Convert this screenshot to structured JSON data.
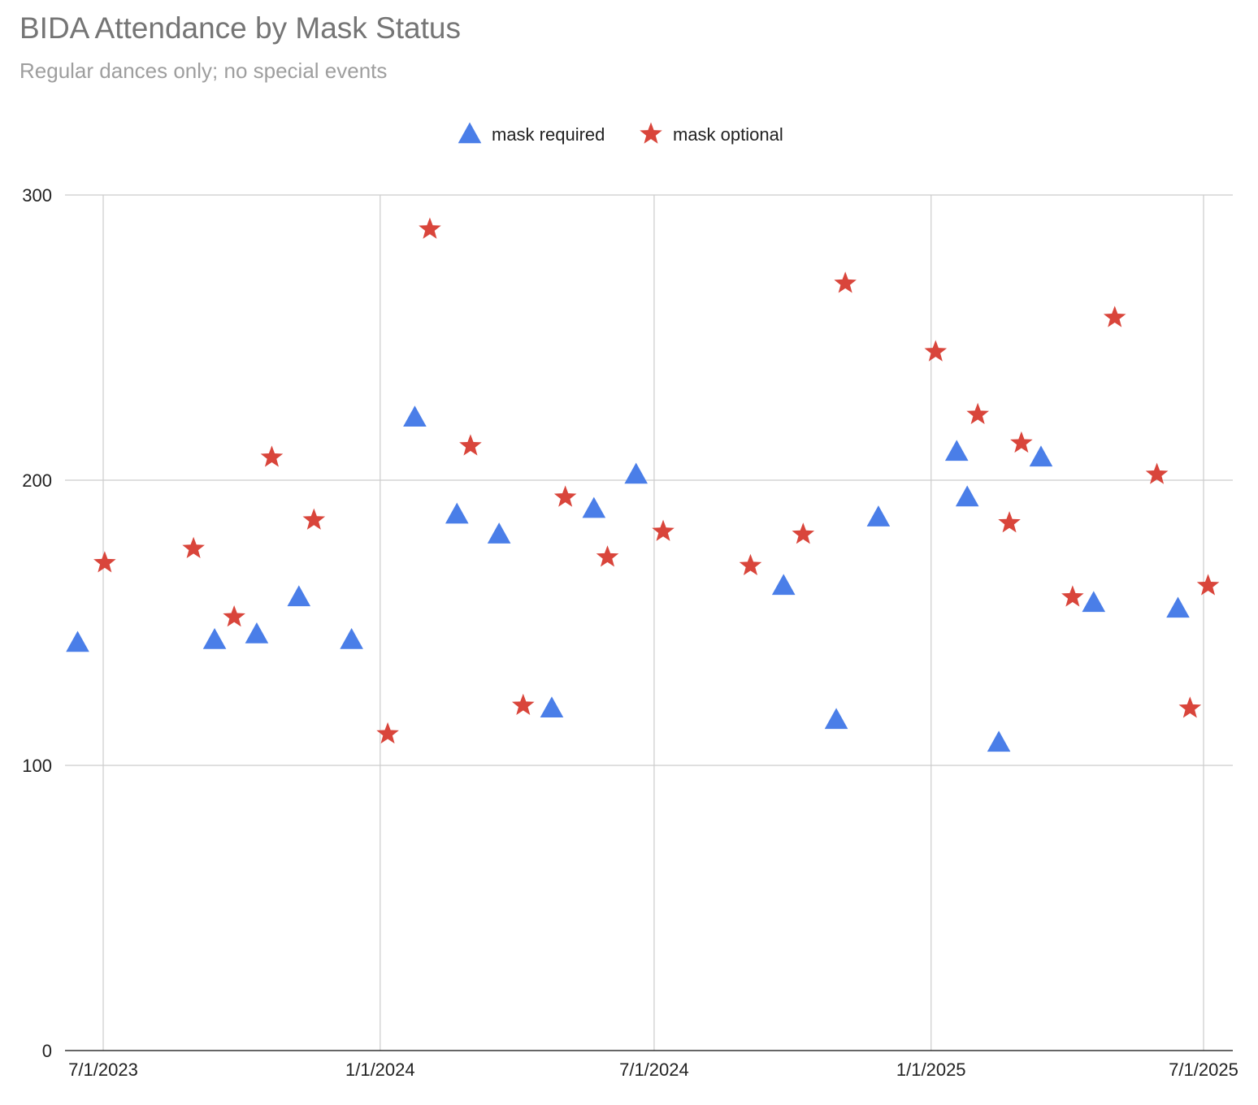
{
  "chart_data": {
    "type": "scatter",
    "title": "BIDA Attendance by Mask Status",
    "subtitle": "Regular dances only; no special events",
    "xlabel": "",
    "ylabel": "",
    "x_ticks": [
      "7/1/2023",
      "1/1/2024",
      "7/1/2024",
      "1/1/2025",
      "7/1/2025"
    ],
    "xlim": [
      "2023-06-14",
      "2025-07-09"
    ],
    "ylim": [
      0,
      300
    ],
    "y_ticks": [
      0,
      100,
      200,
      300
    ],
    "grid": true,
    "legend_position": "top-center",
    "series": [
      {
        "name": "mask required",
        "marker": "triangle",
        "color": "#4a7ee8",
        "points": [
          {
            "x": "2023-06-14",
            "y": 143
          },
          {
            "x": "2023-09-13",
            "y": 144
          },
          {
            "x": "2023-10-11",
            "y": 146
          },
          {
            "x": "2023-11-08",
            "y": 159
          },
          {
            "x": "2023-12-13",
            "y": 144
          },
          {
            "x": "2024-01-24",
            "y": 222
          },
          {
            "x": "2024-02-21",
            "y": 188
          },
          {
            "x": "2024-03-20",
            "y": 181
          },
          {
            "x": "2024-04-24",
            "y": 120
          },
          {
            "x": "2024-05-22",
            "y": 190
          },
          {
            "x": "2024-06-19",
            "y": 202
          },
          {
            "x": "2024-09-25",
            "y": 163
          },
          {
            "x": "2024-10-30",
            "y": 116
          },
          {
            "x": "2024-11-27",
            "y": 187
          },
          {
            "x": "2025-01-18",
            "y": 210
          },
          {
            "x": "2025-01-25",
            "y": 194
          },
          {
            "x": "2025-02-15",
            "y": 108
          },
          {
            "x": "2025-03-15",
            "y": 208
          },
          {
            "x": "2025-04-19",
            "y": 157
          },
          {
            "x": "2025-06-14",
            "y": 155
          }
        ]
      },
      {
        "name": "mask optional",
        "marker": "star",
        "color": "#d9453b",
        "points": [
          {
            "x": "2023-07-02",
            "y": 171
          },
          {
            "x": "2023-08-30",
            "y": 176
          },
          {
            "x": "2023-09-26",
            "y": 152
          },
          {
            "x": "2023-10-21",
            "y": 208
          },
          {
            "x": "2023-11-18",
            "y": 186
          },
          {
            "x": "2024-01-06",
            "y": 111
          },
          {
            "x": "2024-02-03",
            "y": 288
          },
          {
            "x": "2024-03-01",
            "y": 212
          },
          {
            "x": "2024-04-05",
            "y": 121
          },
          {
            "x": "2024-05-03",
            "y": 194
          },
          {
            "x": "2024-05-31",
            "y": 173
          },
          {
            "x": "2024-07-07",
            "y": 182
          },
          {
            "x": "2024-09-03",
            "y": 170
          },
          {
            "x": "2024-10-08",
            "y": 181
          },
          {
            "x": "2024-11-05",
            "y": 269
          },
          {
            "x": "2025-01-04",
            "y": 245
          },
          {
            "x": "2025-02-01",
            "y": 223
          },
          {
            "x": "2025-02-22",
            "y": 185
          },
          {
            "x": "2025-03-02",
            "y": 213
          },
          {
            "x": "2025-04-05",
            "y": 159
          },
          {
            "x": "2025-05-03",
            "y": 257
          },
          {
            "x": "2025-05-31",
            "y": 202
          },
          {
            "x": "2025-06-22",
            "y": 120
          },
          {
            "x": "2025-07-04",
            "y": 163
          }
        ]
      }
    ]
  }
}
